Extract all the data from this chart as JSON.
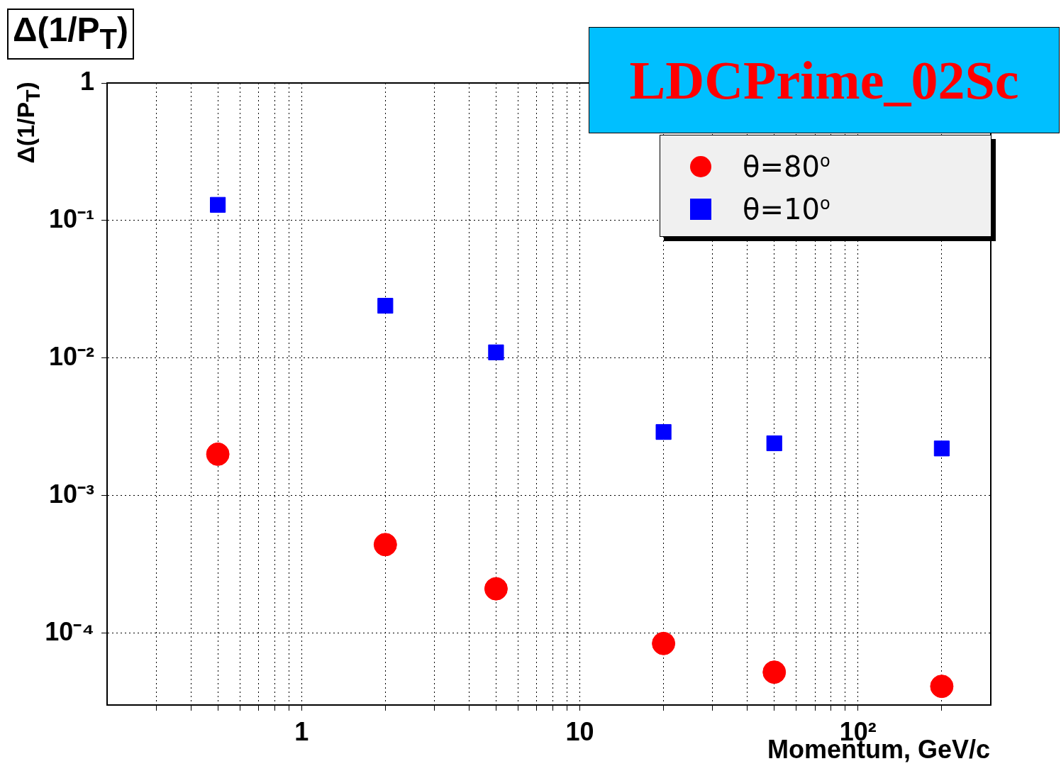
{
  "chart_data": {
    "type": "scatter",
    "title": "Δ(1/P$_{T}$)",
    "subtitle": "LDCPrime_02Sc",
    "xlabel": "Momentum, GeV/c",
    "ylabel": "Δ(1/P$_{T}$)",
    "x": [
      0.5,
      2,
      5,
      20,
      50,
      200
    ],
    "series": [
      {
        "name": "θ=80$^{o}$",
        "color": "#ff0000",
        "marker": "circle",
        "values": [
          0.002,
          0.00044,
          0.00021,
          8.4e-05,
          5.2e-05,
          4.1e-05
        ]
      },
      {
        "name": "θ=10$^{o}$",
        "color": "#0000ff",
        "marker": "square",
        "values": [
          0.13,
          0.024,
          0.011,
          0.0029,
          0.0024,
          0.0022
        ]
      }
    ],
    "log": "xy",
    "xlim": [
      0.2,
      300
    ],
    "ylim": [
      3e-05,
      1
    ],
    "xticks": [
      {
        "value": 0.3,
        "label": null
      },
      {
        "value": 0.4,
        "label": null
      },
      {
        "value": 0.5,
        "label": null
      },
      {
        "value": 0.6,
        "label": null
      },
      {
        "value": 0.7,
        "label": null
      },
      {
        "value": 0.8,
        "label": null
      },
      {
        "value": 0.9,
        "label": null
      },
      1,
      {
        "value": 2,
        "label": null
      },
      {
        "value": 3,
        "label": null
      },
      {
        "value": 4,
        "label": null
      },
      {
        "value": 5,
        "label": null
      },
      {
        "value": 6,
        "label": null
      },
      {
        "value": 7,
        "label": null
      },
      {
        "value": 8,
        "label": null
      },
      {
        "value": 9,
        "label": null
      },
      10,
      {
        "value": 20,
        "label": null
      },
      {
        "value": 30,
        "label": null
      },
      {
        "value": 40,
        "label": null
      },
      {
        "value": 50,
        "label": null
      },
      {
        "value": 60,
        "label": null
      },
      {
        "value": 70,
        "label": null
      },
      {
        "value": 80,
        "label": null
      },
      {
        "value": 90,
        "label": null
      },
      {
        "value": 100,
        "label": "10²"
      },
      {
        "value": 200,
        "label": null
      }
    ],
    "yticks": [
      {
        "value": 0.0001,
        "label": "10⁻⁴"
      },
      {
        "value": 0.001,
        "label": "10⁻³"
      },
      {
        "value": 0.01,
        "label": "10⁻²"
      },
      {
        "value": 0.1,
        "label": "10⁻¹"
      },
      1
    ],
    "grid": true,
    "legend": "top right"
  }
}
